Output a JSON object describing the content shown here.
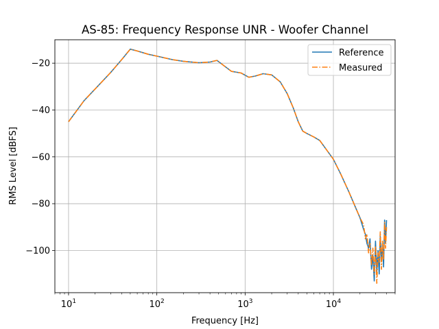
{
  "chart_data": {
    "type": "line",
    "title": "AS-85: Frequency Response UNR - Woofer Channel",
    "xlabel": "Frequency [Hz]",
    "ylabel": "RMS Level [dBFS]",
    "xscale": "log",
    "xlim": [
      7,
      50000
    ],
    "ylim": [
      -118,
      -10
    ],
    "xticks": [
      10,
      100,
      1000,
      10000
    ],
    "xtick_labels": [
      {
        "base": "10",
        "exp": "1"
      },
      {
        "base": "10",
        "exp": "2"
      },
      {
        "base": "10",
        "exp": "3"
      },
      {
        "base": "10",
        "exp": "4"
      }
    ],
    "yticks": [
      -100,
      -80,
      -60,
      -40,
      -20
    ],
    "ytick_labels": [
      "−100",
      "−80",
      "−60",
      "−40",
      "−20"
    ],
    "grid": true,
    "legend_position": "top-right",
    "series": [
      {
        "name": "Reference",
        "color": "#1f77b4",
        "style": "solid",
        "x": [
          10,
          15,
          20,
          30,
          40,
          50,
          60,
          80,
          100,
          150,
          200,
          300,
          400,
          480,
          550,
          700,
          900,
          1100,
          1300,
          1600,
          2000,
          2500,
          3000,
          3500,
          4000,
          4500,
          5000,
          6000,
          7000,
          8000,
          10000,
          12000,
          15000,
          18000,
          20000,
          22000,
          23000,
          24000,
          25000,
          26000,
          27000,
          28000,
          29000,
          30000,
          31000,
          32000,
          33000,
          34000,
          35000,
          36000,
          37000,
          38000,
          39000,
          40000
        ],
        "y": [
          -45,
          -36,
          -31,
          -24,
          -18.5,
          -14,
          -14.8,
          -16.2,
          -17,
          -18.5,
          -19.2,
          -19.8,
          -19.5,
          -18.8,
          -20.5,
          -23.5,
          -24.2,
          -26,
          -25.5,
          -24.5,
          -25,
          -28,
          -33,
          -39,
          -45,
          -49,
          -50,
          -51.5,
          -53,
          -56,
          -61,
          -67,
          -75,
          -82,
          -86,
          -91,
          -93,
          -97,
          -99,
          -95,
          -108,
          -102,
          -113,
          -96,
          -109,
          -100,
          -110,
          -94,
          -104,
          -97,
          -107,
          -87,
          -97,
          -87
        ]
      },
      {
        "name": "Measured",
        "color": "#ff7f0e",
        "style": "dashdot",
        "x": [
          10,
          15,
          20,
          30,
          40,
          50,
          60,
          80,
          100,
          150,
          200,
          300,
          400,
          480,
          550,
          700,
          900,
          1100,
          1300,
          1600,
          2000,
          2500,
          3000,
          3500,
          4000,
          4500,
          5000,
          6000,
          7000,
          8000,
          10000,
          12000,
          15000,
          18000,
          20000,
          22000,
          23000,
          24000,
          25000,
          26000,
          27000,
          28000,
          29000,
          30000,
          31000,
          32000,
          33000,
          34000,
          35000,
          36000,
          37000,
          38000,
          39000,
          40000
        ],
        "y": [
          -45,
          -36,
          -31,
          -24,
          -18.5,
          -14,
          -14.8,
          -16.2,
          -17,
          -18.5,
          -19.2,
          -19.8,
          -19.5,
          -18.8,
          -20.5,
          -23.5,
          -24.2,
          -26,
          -25.5,
          -24.5,
          -25,
          -28,
          -33,
          -39,
          -45,
          -49,
          -50,
          -51.5,
          -53,
          -56,
          -61,
          -67,
          -75,
          -82,
          -86,
          -89,
          -95,
          -93,
          -101,
          -97,
          -106,
          -99,
          -110,
          -98,
          -114,
          -101,
          -105,
          -92,
          -108,
          -96,
          -104,
          -88,
          -99,
          -90
        ]
      }
    ]
  }
}
